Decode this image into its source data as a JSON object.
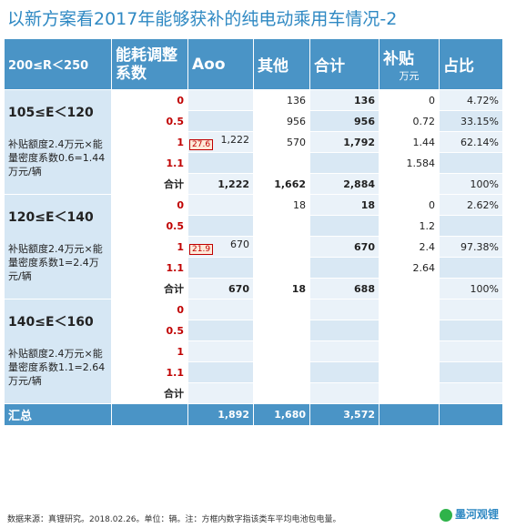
{
  "title": "以新方案看2017年能够获补的纯电动乘用车情况-2",
  "header": {
    "col1": "200≤R＜250",
    "col2": "能耗调整系数",
    "col3": "Aoo",
    "col4": "其他",
    "col5": "合计",
    "col6": "补贴",
    "col6_sub": "万元",
    "col7": "占比"
  },
  "bands": [
    {
      "range": "105≤E＜120",
      "desc": "补贴额度2.4万元×能量密度系数0.6=1.44万元/辆",
      "badge": "27.6",
      "rows": [
        {
          "coef": "0",
          "a": "",
          "other": "136",
          "total": "136",
          "sub": "0",
          "pct": "4.72%"
        },
        {
          "coef": "0.5",
          "a": "",
          "other": "956",
          "total": "956",
          "sub": "0.72",
          "pct": "33.15%"
        },
        {
          "coef": "1",
          "a": "1,222",
          "other": "570",
          "total": "1,792",
          "sub": "1.44",
          "pct": "62.14%"
        },
        {
          "coef": "1.1",
          "a": "",
          "other": "",
          "total": "",
          "sub": "1.584",
          "pct": ""
        }
      ],
      "total": {
        "label": "合计",
        "a": "1,222",
        "other": "1,662",
        "total": "2,884",
        "sub": "",
        "pct": "100%"
      }
    },
    {
      "range": "120≤E＜140",
      "desc": "补贴额度2.4万元×能量密度系数1=2.4万元/辆",
      "badge": "21.9",
      "rows": [
        {
          "coef": "0",
          "a": "",
          "other": "18",
          "total": "18",
          "sub": "0",
          "pct": "2.62%"
        },
        {
          "coef": "0.5",
          "a": "",
          "other": "",
          "total": "",
          "sub": "1.2",
          "pct": ""
        },
        {
          "coef": "1",
          "a": "670",
          "other": "",
          "total": "670",
          "sub": "2.4",
          "pct": "97.38%"
        },
        {
          "coef": "1.1",
          "a": "",
          "other": "",
          "total": "",
          "sub": "2.64",
          "pct": ""
        }
      ],
      "total": {
        "label": "合计",
        "a": "670",
        "other": "18",
        "total": "688",
        "sub": "",
        "pct": "100%"
      }
    },
    {
      "range": "140≤E＜160",
      "desc": "补贴额度2.4万元×能量密度系数1.1=2.64万元/辆",
      "badge": "",
      "rows": [
        {
          "coef": "0",
          "a": "",
          "other": "",
          "total": "",
          "sub": "",
          "pct": ""
        },
        {
          "coef": "0.5",
          "a": "",
          "other": "",
          "total": "",
          "sub": "",
          "pct": ""
        },
        {
          "coef": "1",
          "a": "",
          "other": "",
          "total": "",
          "sub": "",
          "pct": ""
        },
        {
          "coef": "1.1",
          "a": "",
          "other": "",
          "total": "",
          "sub": "",
          "pct": ""
        }
      ],
      "total": {
        "label": "合计",
        "a": "",
        "other": "",
        "total": "",
        "sub": "",
        "pct": ""
      }
    }
  ],
  "summary": {
    "label": "汇总",
    "a": "1,892",
    "other": "1,680",
    "total": "3,572"
  },
  "footer": "数据来源：真锂研究。2018.02.26。单位：辆。注：方框内数字指该类车平均电池包电量。",
  "watermark": "墨河观锂",
  "colors": {
    "header": "#4a94c6",
    "title": "#2f89c3",
    "coef": "#c00000"
  }
}
